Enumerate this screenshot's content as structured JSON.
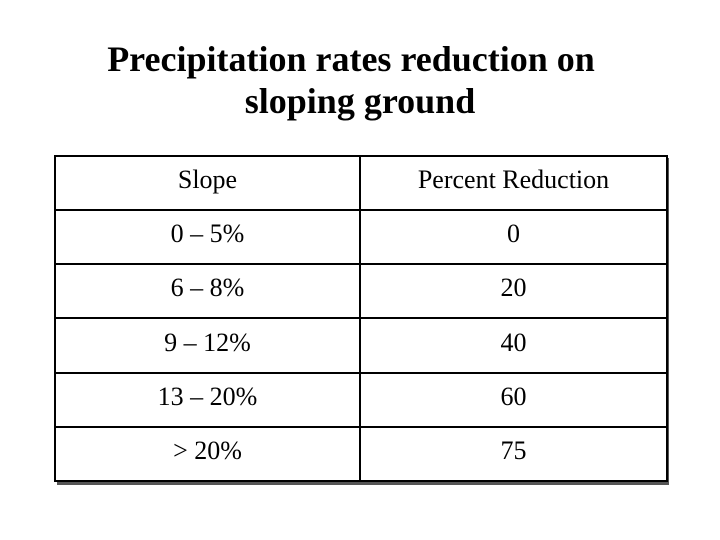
{
  "slide": {
    "title_line1": "Precipitation rates reduction on",
    "title_line2": "sloping ground"
  },
  "table": {
    "headers": [
      "Slope",
      "Percent Reduction"
    ],
    "rows": [
      [
        "0 – 5%",
        "0"
      ],
      [
        "6 – 8%",
        "20"
      ],
      [
        "9 – 12%",
        "40"
      ],
      [
        "13 – 20%",
        "60"
      ],
      [
        "> 20%",
        "75"
      ]
    ]
  }
}
